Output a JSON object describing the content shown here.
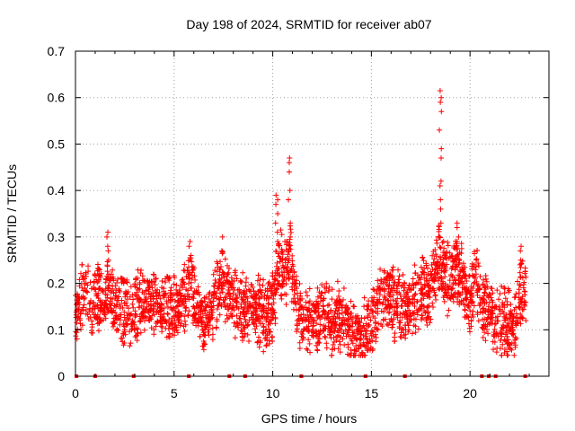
{
  "chart_data": {
    "type": "scatter",
    "title": "Day 198 of 2024, SRMTID for receiver ab07",
    "xlabel": "GPS time / hours",
    "ylabel": "SRMTID / TECUs",
    "xlim": [
      0,
      24
    ],
    "ylim": [
      0,
      0.7
    ],
    "xticks": [
      0,
      5,
      10,
      15,
      20
    ],
    "yticks": [
      0,
      0.1,
      0.2,
      0.3,
      0.4,
      0.5,
      0.6,
      0.7
    ],
    "x_tick_labels": [
      "0",
      "5",
      "10",
      "15",
      "20"
    ],
    "y_tick_labels": [
      "0",
      "0.1",
      "0.2",
      "0.3",
      "0.4",
      "0.5",
      "0.6",
      "0.7"
    ],
    "grid": true,
    "marker": "plus",
    "color": "#ff0000",
    "zero_markers_x": [
      0.05,
      1.0,
      2.95,
      5.75,
      7.8,
      8.6,
      11.45,
      14.7,
      16.7,
      20.6,
      20.95,
      21.3,
      22.8
    ],
    "trend": [
      [
        0.0,
        0.12
      ],
      [
        0.3,
        0.16
      ],
      [
        0.5,
        0.19
      ],
      [
        0.8,
        0.15
      ],
      [
        1.1,
        0.18
      ],
      [
        1.4,
        0.16
      ],
      [
        1.7,
        0.19
      ],
      [
        2.0,
        0.15
      ],
      [
        2.4,
        0.14
      ],
      [
        2.8,
        0.13
      ],
      [
        3.2,
        0.16
      ],
      [
        3.6,
        0.17
      ],
      [
        4.0,
        0.15
      ],
      [
        4.5,
        0.16
      ],
      [
        5.0,
        0.14
      ],
      [
        5.5,
        0.16
      ],
      [
        5.8,
        0.21
      ],
      [
        6.2,
        0.15
      ],
      [
        6.6,
        0.11
      ],
      [
        7.0,
        0.16
      ],
      [
        7.4,
        0.2
      ],
      [
        7.8,
        0.17
      ],
      [
        8.2,
        0.16
      ],
      [
        8.6,
        0.14
      ],
      [
        9.0,
        0.15
      ],
      [
        9.4,
        0.13
      ],
      [
        9.8,
        0.14
      ],
      [
        10.1,
        0.17
      ],
      [
        10.3,
        0.24
      ],
      [
        10.6,
        0.22
      ],
      [
        10.9,
        0.26
      ],
      [
        11.1,
        0.18
      ],
      [
        11.5,
        0.12
      ],
      [
        12.0,
        0.12
      ],
      [
        12.5,
        0.13
      ],
      [
        13.0,
        0.11
      ],
      [
        13.5,
        0.14
      ],
      [
        14.0,
        0.09
      ],
      [
        14.5,
        0.08
      ],
      [
        15.0,
        0.12
      ],
      [
        15.5,
        0.16
      ],
      [
        16.0,
        0.17
      ],
      [
        16.5,
        0.14
      ],
      [
        17.0,
        0.15
      ],
      [
        17.5,
        0.18
      ],
      [
        18.0,
        0.17
      ],
      [
        18.4,
        0.26
      ],
      [
        18.7,
        0.22
      ],
      [
        19.0,
        0.2
      ],
      [
        19.3,
        0.24
      ],
      [
        19.6,
        0.21
      ],
      [
        20.0,
        0.15
      ],
      [
        20.3,
        0.22
      ],
      [
        20.6,
        0.15
      ],
      [
        21.0,
        0.13
      ],
      [
        21.4,
        0.12
      ],
      [
        21.8,
        0.11
      ],
      [
        22.2,
        0.1
      ],
      [
        22.5,
        0.17
      ],
      [
        22.8,
        0.19
      ]
    ],
    "spikes": [
      {
        "x": 1.65,
        "values": [
          0.31,
          0.3,
          0.28,
          0.27,
          0.25
        ]
      },
      {
        "x": 5.8,
        "values": [
          0.29,
          0.28,
          0.26
        ]
      },
      {
        "x": 7.45,
        "values": [
          0.3,
          0.27
        ]
      },
      {
        "x": 10.2,
        "values": [
          0.39,
          0.38,
          0.37,
          0.35,
          0.33,
          0.31,
          0.29
        ]
      },
      {
        "x": 10.85,
        "values": [
          0.47,
          0.46,
          0.44,
          0.4,
          0.38,
          0.33,
          0.3
        ]
      },
      {
        "x": 18.5,
        "values": [
          0.615,
          0.6,
          0.59,
          0.57,
          0.53,
          0.49,
          0.47,
          0.42,
          0.41,
          0.38,
          0.36,
          0.33,
          0.3
        ]
      },
      {
        "x": 19.4,
        "values": [
          0.33,
          0.32,
          0.3,
          0.29
        ]
      },
      {
        "x": 22.55,
        "values": [
          0.28,
          0.27,
          0.25,
          0.24
        ]
      }
    ]
  }
}
